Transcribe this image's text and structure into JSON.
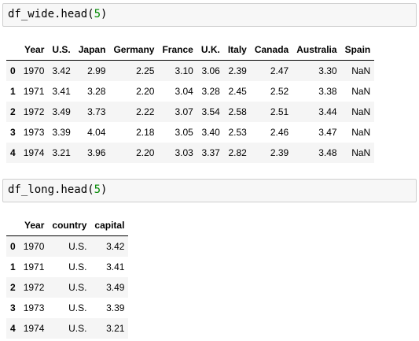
{
  "cell1": {
    "code_prefix": "df_wide.head(",
    "code_num": "5",
    "code_suffix": ")"
  },
  "table1": {
    "columns": [
      "Year",
      "U.S.",
      "Japan",
      "Germany",
      "France",
      "U.K.",
      "Italy",
      "Canada",
      "Australia",
      "Spain"
    ],
    "rows": [
      {
        "index": "0",
        "cells": [
          "1970",
          "3.42",
          "2.99",
          "2.25",
          "3.10",
          "3.06",
          "2.39",
          "2.47",
          "3.30",
          "NaN"
        ]
      },
      {
        "index": "1",
        "cells": [
          "1971",
          "3.41",
          "3.28",
          "2.20",
          "3.04",
          "3.28",
          "2.45",
          "2.52",
          "3.38",
          "NaN"
        ]
      },
      {
        "index": "2",
        "cells": [
          "1972",
          "3.49",
          "3.73",
          "2.22",
          "3.07",
          "3.54",
          "2.58",
          "2.51",
          "3.44",
          "NaN"
        ]
      },
      {
        "index": "3",
        "cells": [
          "1973",
          "3.39",
          "4.04",
          "2.18",
          "3.05",
          "3.40",
          "2.53",
          "2.46",
          "3.47",
          "NaN"
        ]
      },
      {
        "index": "4",
        "cells": [
          "1974",
          "3.21",
          "3.96",
          "2.20",
          "3.03",
          "3.37",
          "2.82",
          "2.39",
          "3.48",
          "NaN"
        ]
      }
    ]
  },
  "cell2": {
    "code_prefix": "df_long.head(",
    "code_num": "5",
    "code_suffix": ")"
  },
  "table2": {
    "columns": [
      "Year",
      "country",
      "capital"
    ],
    "rows": [
      {
        "index": "0",
        "cells": [
          "1970",
          "U.S.",
          "3.42"
        ]
      },
      {
        "index": "1",
        "cells": [
          "1971",
          "U.S.",
          "3.41"
        ]
      },
      {
        "index": "2",
        "cells": [
          "1972",
          "U.S.",
          "3.49"
        ]
      },
      {
        "index": "3",
        "cells": [
          "1973",
          "U.S.",
          "3.39"
        ]
      },
      {
        "index": "4",
        "cells": [
          "1974",
          "U.S.",
          "3.21"
        ]
      }
    ]
  }
}
